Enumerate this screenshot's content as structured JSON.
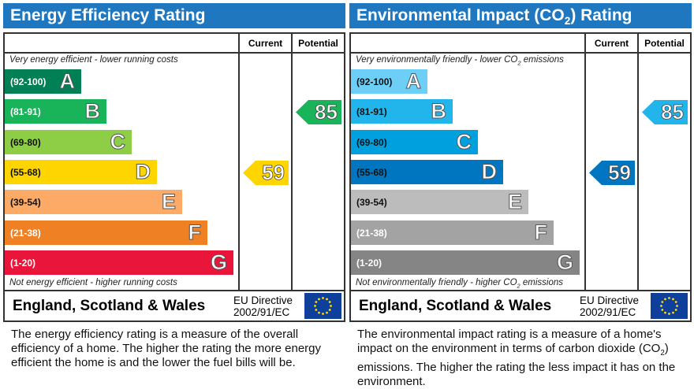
{
  "chart_data": [
    {
      "type": "bar",
      "title": "Energy Efficiency Rating",
      "columns": [
        "Current",
        "Potential"
      ],
      "top_caption": "Very energy efficient - lower running costs",
      "bottom_caption": "Not energy efficient - higher running costs",
      "bands": [
        {
          "range": "(92-100)",
          "letter": "A",
          "color": "#008054",
          "text": "#fff"
        },
        {
          "range": "(81-91)",
          "letter": "B",
          "color": "#19b459",
          "text": "#fff"
        },
        {
          "range": "(69-80)",
          "letter": "C",
          "color": "#8dce46",
          "text": "#111"
        },
        {
          "range": "(55-68)",
          "letter": "D",
          "color": "#ffd500",
          "text": "#111"
        },
        {
          "range": "(39-54)",
          "letter": "E",
          "color": "#fcaa65",
          "text": "#111"
        },
        {
          "range": "(21-38)",
          "letter": "F",
          "color": "#ef8023",
          "text": "#fff"
        },
        {
          "range": "(1-20)",
          "letter": "G",
          "color": "#e9153b",
          "text": "#fff"
        }
      ],
      "current": {
        "value": 59,
        "band": "D",
        "color": "#ffd500"
      },
      "potential": {
        "value": 85,
        "band": "B",
        "color": "#19b459"
      },
      "region": "England, Scotland & Wales",
      "directive_1": "EU Directive",
      "directive_2": "2002/91/EC",
      "description": "The energy efficiency rating is a measure of the overall efficiency of a home. The higher the rating the more energy efficient the home is and the lower the fuel bills will be."
    },
    {
      "type": "bar",
      "title": "Environmental Impact (CO2) Rating",
      "columns": [
        "Current",
        "Potential"
      ],
      "top_caption": "Very environmentally friendly - lower CO2 emissions",
      "bottom_caption": "Not environmentally friendly - higher CO2 emissions",
      "bands": [
        {
          "range": "(92-100)",
          "letter": "A",
          "color": "#6dcff6",
          "text": "#111"
        },
        {
          "range": "(81-91)",
          "letter": "B",
          "color": "#22b5ec",
          "text": "#111"
        },
        {
          "range": "(69-80)",
          "letter": "C",
          "color": "#00a0df",
          "text": "#111"
        },
        {
          "range": "(55-68)",
          "letter": "D",
          "color": "#0075c0",
          "text": "#111"
        },
        {
          "range": "(39-54)",
          "letter": "E",
          "color": "#bcbcbc",
          "text": "#111"
        },
        {
          "range": "(21-38)",
          "letter": "F",
          "color": "#a3a3a3",
          "text": "#fff"
        },
        {
          "range": "(1-20)",
          "letter": "G",
          "color": "#858585",
          "text": "#fff"
        }
      ],
      "current": {
        "value": 59,
        "band": "D",
        "color": "#0075c0"
      },
      "potential": {
        "value": 85,
        "band": "B",
        "color": "#22b5ec"
      },
      "region": "England, Scotland & Wales",
      "directive_1": "EU Directive",
      "directive_2": "2002/91/EC",
      "description": "The environmental impact rating is a measure of a home's impact on the environment in terms of carbon dioxide (CO2) emissions. The higher the rating the less impact it has on the environment."
    }
  ]
}
